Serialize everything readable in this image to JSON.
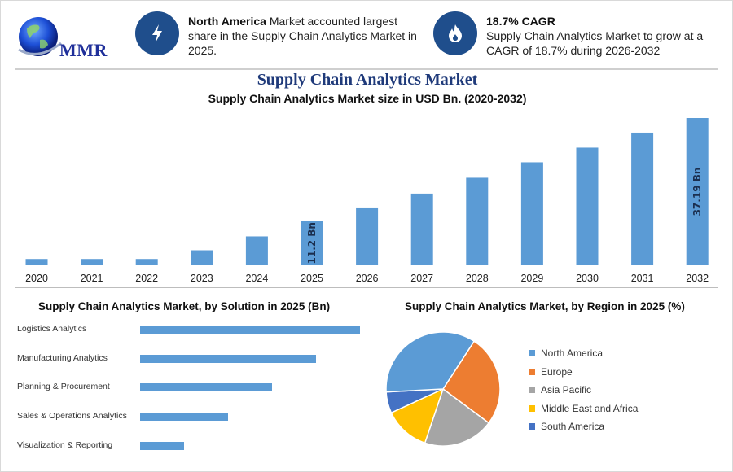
{
  "header": {
    "logo_text": "MMR",
    "info1": {
      "bold": "North America",
      "text": " Market accounted largest share in the Supply Chain Analytics Market in 2025."
    },
    "info2": {
      "bold": "18.7% CAGR",
      "text": "Supply Chain Analytics Market to grow at a CAGR of 18.7% during 2026-2032"
    },
    "icons": {
      "info1": "lightning-icon",
      "info2": "flame-icon"
    }
  },
  "colors": {
    "bar": "#5b9bd5",
    "icon_bg": "#1f4e8c",
    "title": "#1f3a7a"
  },
  "chart_data": [
    {
      "type": "bar",
      "title": "Supply Chain Analytics Market",
      "subtitle": "Supply Chain Analytics Market size in USD Bn. (2020-2032)",
      "categories": [
        "2020",
        "2021",
        "2022",
        "2023",
        "2024",
        "2025",
        "2026",
        "2027",
        "2028",
        "2029",
        "2030",
        "2031",
        "2032"
      ],
      "values": [
        1.6,
        1.6,
        1.6,
        3.8,
        7.3,
        11.2,
        14.6,
        18.1,
        22.1,
        26.0,
        29.7,
        33.5,
        37.19
      ],
      "data_labels": {
        "2025": "11.2 Bn",
        "2032": "37.19 Bn"
      },
      "ylim": [
        0,
        37.19
      ]
    },
    {
      "type": "bar",
      "orientation": "horizontal",
      "title": "Supply Chain Analytics Market, by Solution in 2025 (Bn)",
      "categories": [
        "Logistics Analytics",
        "Manufacturing Analytics",
        "Planning & Procurement",
        "Sales & Operations Analytics",
        "Visualization & Reporting"
      ],
      "values": [
        100,
        80,
        60,
        40,
        20
      ]
    },
    {
      "type": "pie",
      "title": "Supply Chain Analytics Market, by Region in 2025 (%)",
      "categories": [
        "North America",
        "Europe",
        "Asia Pacific",
        "Middle East and Africa",
        "South America"
      ],
      "values": [
        35,
        26,
        20,
        13,
        6
      ],
      "colors": [
        "#5b9bd5",
        "#ed7d31",
        "#a5a5a5",
        "#ffc000",
        "#4472c4"
      ],
      "legend": "right"
    }
  ]
}
